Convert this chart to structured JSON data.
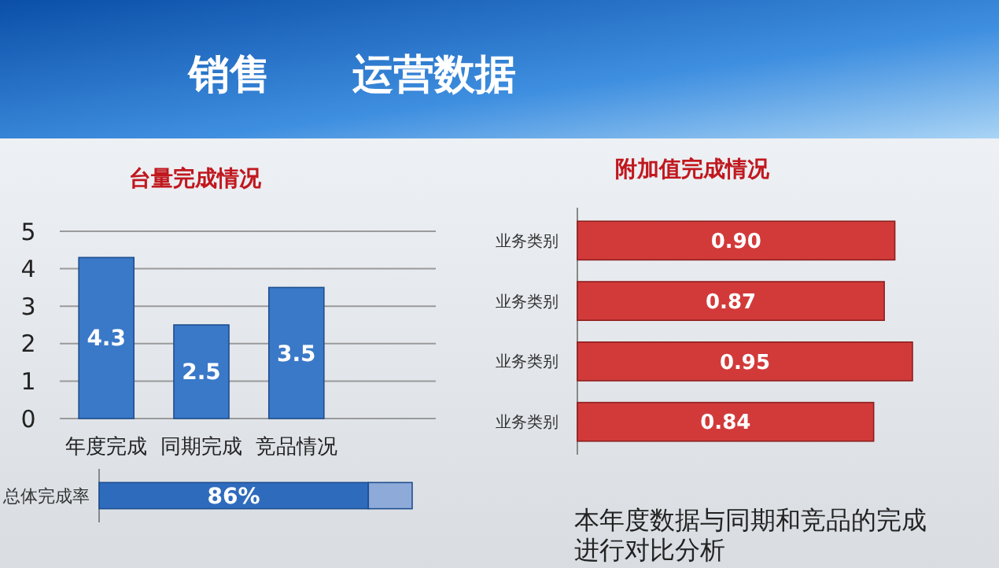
{
  "chart_data": [
    {
      "type": "bar",
      "title": "台量完成情况",
      "annotations": [
        "销售　　运营数据"
      ],
      "categories": [
        "年度完成",
        "同期完成",
        "竞品情况"
      ],
      "values": [
        4.3,
        2.5,
        3.5
      ],
      "color": "#3a78c8",
      "ylim": [
        0,
        5
      ],
      "yticks": [
        0,
        1,
        2,
        3,
        4,
        5
      ],
      "grid": "y",
      "data_labels": true
    },
    {
      "type": "bar",
      "orientation": "horizontal",
      "stacked": true,
      "categories": [
        "总体完成率"
      ],
      "series": [
        {
          "color": "#2f6bbd",
          "values": [
            86
          ],
          "value_labels": [
            "86%"
          ]
        },
        {
          "color": "#8eaad8",
          "values": [
            14
          ]
        }
      ],
      "xlim": [
        0,
        100
      ],
      "tick_labels": "y"
    },
    {
      "type": "bar",
      "orientation": "horizontal",
      "title": "附加值完成情况",
      "categories": [
        "业务类别",
        "业务类别",
        "业务类别",
        "业务类别"
      ],
      "values": [
        0.9,
        0.87,
        0.95,
        0.84
      ],
      "value_labels": [
        "0.90",
        "0.87",
        "0.95",
        "0.84"
      ],
      "color": "#d23a3a",
      "tick_labels": "y",
      "annotations": [
        "本年度数据与同期和竞品的完成进行对比分析"
      ]
    }
  ]
}
